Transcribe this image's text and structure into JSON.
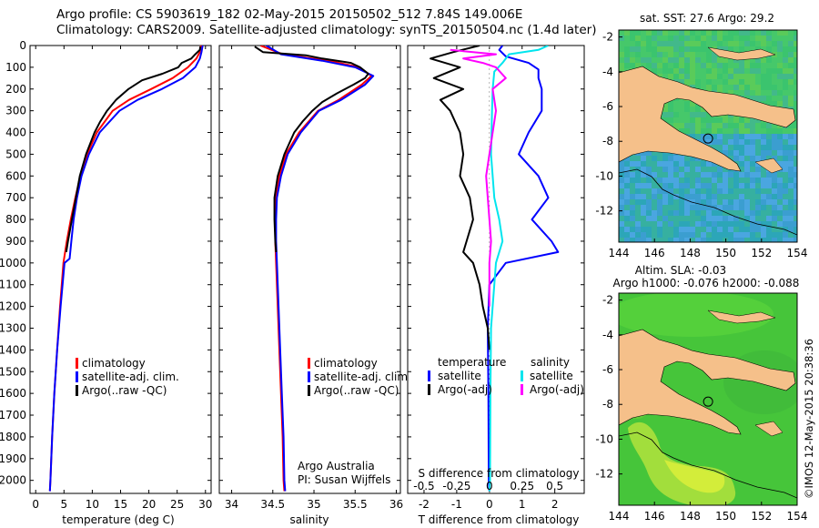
{
  "header": {
    "line1": "Argo profile: CS 5903619_182 02-May-2015 20150502_512 7.84S 149.006E",
    "line2": "Climatology: CARS2009. Satellite-adjusted climatology: synTS_20150504.nc (1.4d later)"
  },
  "depth_axis": {
    "ticks": [
      0,
      100,
      200,
      300,
      400,
      500,
      600,
      700,
      800,
      900,
      1000,
      1100,
      1200,
      1300,
      1400,
      1500,
      1600,
      1700,
      1800,
      1900,
      2000
    ],
    "range": [
      0,
      2060
    ]
  },
  "temp_panel": {
    "xlabel": "temperature (deg C)",
    "xticks": [
      0,
      5,
      10,
      15,
      20,
      25,
      30
    ],
    "xrange": [
      -1,
      31
    ],
    "legend": [
      "climatology",
      "satellite-adj. clim.",
      "Argo(..raw -QC)"
    ],
    "colors": {
      "clim": "#ff0000",
      "sat": "#0000ff",
      "argo": "#000000"
    }
  },
  "sal_panel": {
    "xlabel": "salinity",
    "xticks": [
      "34",
      "34.5",
      "35",
      "35.5",
      "36"
    ],
    "xrange": [
      33.85,
      36.05
    ],
    "legend": [
      "climatology",
      "satellite-adj. clim.",
      "Argo(..raw -QC)"
    ],
    "credit1": "Argo Australia",
    "credit2": "PI: Susan Wijffels"
  },
  "diff_panel": {
    "xlabel": "T difference from climatology",
    "xticks": [
      "-2",
      "-1",
      "0",
      "1",
      "2"
    ],
    "top_label": "S difference from climatology",
    "top_ticks": [
      "-0.5",
      "-0.25",
      "0",
      "0.25",
      "0.5"
    ],
    "xrange": [
      -2.5,
      2.9
    ],
    "legend_temp_title": "temperature",
    "legend_sal_title": "salinity",
    "legend_items": [
      "satellite",
      "Argo(-adj)",
      "satellite",
      "Argo(-adj)"
    ],
    "colors": {
      "t_sat": "#0000ff",
      "t_argo": "#000000",
      "s_sat": "#00e5ee",
      "s_argo": "#ff00ff"
    }
  },
  "map_sst": {
    "title": "sat. SST: 27.6  Argo: 29.2",
    "xticks": [
      "144",
      "146",
      "148",
      "150",
      "152",
      "154"
    ],
    "yticks": [
      "-2",
      "-4",
      "-6",
      "-8",
      "-10",
      "-12"
    ]
  },
  "map_sla": {
    "title1": "Altim. SLA: -0.03",
    "title2": "Argo h1000: -0.076  h2000: -0.088",
    "xticks": [
      "144",
      "146",
      "148",
      "150",
      "152",
      "154"
    ],
    "yticks": [
      "-2",
      "-4",
      "-6",
      "-8",
      "-10",
      "-12"
    ]
  },
  "float_position": {
    "lon": 149.006,
    "lat": -7.84
  },
  "stamp": "©IMOS 12-May-2015 20:38:36",
  "chart_data": [
    {
      "type": "line",
      "title": "",
      "xlabel": "temperature (deg C)",
      "ylabel": "",
      "xlim": [
        -1,
        31
      ],
      "ylim": [
        2060,
        0
      ],
      "series": [
        {
          "name": "climatology",
          "depth": [
            0,
            30,
            60,
            100,
            150,
            200,
            250,
            300,
            400,
            500,
            600,
            700,
            800,
            900,
            1000,
            1200,
            1400,
            1600,
            1800,
            2000,
            2050
          ],
          "values": [
            29.2,
            29,
            28.4,
            26.9,
            24.2,
            20.4,
            16.5,
            13.6,
            10.8,
            9.1,
            7.9,
            7.0,
            6.2,
            5.5,
            4.9,
            4.3,
            3.8,
            3.3,
            2.9,
            2.6,
            2.5
          ]
        },
        {
          "name": "satellite-adj. clim.",
          "depth": [
            0,
            30,
            60,
            100,
            150,
            200,
            250,
            300,
            400,
            500,
            600,
            700,
            800,
            900,
            980,
            1000,
            1200,
            1400,
            1600,
            1800,
            2000,
            2050
          ],
          "values": [
            29.5,
            29.3,
            29,
            28.2,
            26,
            22.3,
            18,
            14.8,
            11.3,
            9.4,
            8.1,
            7.3,
            6.7,
            6.3,
            6.0,
            5.1,
            4.4,
            3.8,
            3.3,
            2.9,
            2.6,
            2.5
          ]
        },
        {
          "name": "Argo(..raw -QC)",
          "depth": [
            5,
            20,
            40,
            60,
            80,
            100,
            130,
            160,
            200,
            250,
            300,
            350,
            400,
            500,
            600,
            700,
            800,
            900,
            950
          ],
          "values": [
            29.1,
            29.0,
            28.2,
            27.5,
            25.8,
            25.2,
            22.4,
            18.8,
            16.4,
            14.2,
            12.6,
            11.4,
            10.4,
            8.9,
            7.8,
            7.1,
            6.4,
            5.7,
            5.4
          ]
        }
      ]
    },
    {
      "type": "line",
      "title": "",
      "xlabel": "salinity",
      "ylabel": "",
      "xlim": [
        33.85,
        36.05
      ],
      "ylim": [
        2060,
        0
      ],
      "series": [
        {
          "name": "climatology",
          "depth": [
            0,
            40,
            70,
            100,
            140,
            180,
            250,
            300,
            400,
            500,
            600,
            700,
            800,
            900,
            1000,
            1200,
            1400,
            1600,
            1800,
            2000,
            2050
          ],
          "values": [
            34.35,
            34.62,
            35.18,
            35.55,
            35.7,
            35.58,
            35.3,
            35.05,
            34.82,
            34.66,
            34.58,
            34.54,
            34.53,
            34.53,
            34.54,
            34.56,
            34.58,
            34.6,
            34.62,
            34.63,
            34.64
          ]
        },
        {
          "name": "satellite-adj. clim.",
          "depth": [
            0,
            40,
            70,
            100,
            140,
            180,
            250,
            300,
            400,
            500,
            600,
            700,
            800,
            900,
            1000,
            1200,
            1400,
            1600,
            1800,
            2000,
            2050
          ],
          "values": [
            34.42,
            34.6,
            35.1,
            35.5,
            35.72,
            35.62,
            35.33,
            35.06,
            34.84,
            34.68,
            34.6,
            34.55,
            34.54,
            34.54,
            34.55,
            34.57,
            34.59,
            34.61,
            34.63,
            34.64,
            34.65
          ]
        },
        {
          "name": "Argo(..raw -QC)",
          "depth": [
            5,
            15,
            30,
            45,
            60,
            80,
            100,
            130,
            150,
            180,
            220,
            260,
            300,
            350,
            400,
            500,
            600,
            700,
            800,
            900,
            950
          ],
          "values": [
            34.28,
            34.32,
            34.38,
            34.9,
            35.1,
            35.45,
            35.56,
            35.66,
            35.62,
            35.48,
            35.28,
            35.1,
            34.98,
            34.86,
            34.76,
            34.64,
            34.56,
            34.52,
            34.52,
            34.53,
            34.54
          ]
        }
      ]
    },
    {
      "type": "line",
      "title": "",
      "xlabel": "T difference from climatology",
      "ylabel": "",
      "xlim": [
        -2.5,
        2.9
      ],
      "ylim": [
        2060,
        0
      ],
      "series": [
        {
          "name": "temperature satellite",
          "depth": [
            0,
            20,
            50,
            80,
            110,
            150,
            200,
            300,
            400,
            500,
            600,
            700,
            800,
            900,
            950,
            1000,
            1100,
            1300,
            1600,
            2000,
            2050
          ],
          "values": [
            0.4,
            0.3,
            0.5,
            1.2,
            1.5,
            1.5,
            1.6,
            1.6,
            1.2,
            0.9,
            1.5,
            1.8,
            1.3,
            1.9,
            2.1,
            0.5,
            0.0,
            -0.05,
            -0.03,
            -0.02,
            0.0
          ]
        },
        {
          "name": "temperature Argo(-adj)",
          "depth": [
            0,
            30,
            60,
            100,
            150,
            200,
            250,
            300,
            400,
            500,
            600,
            700,
            800,
            900,
            950,
            1000,
            1100,
            1200,
            1300,
            1400
          ],
          "values": [
            -0.3,
            -1.1,
            -1.8,
            -0.9,
            -1.7,
            -0.8,
            -1.5,
            -1.2,
            -0.9,
            -0.8,
            -0.9,
            -0.6,
            -0.5,
            -0.7,
            -0.8,
            -0.5,
            -0.3,
            -0.2,
            -0.05,
            0.0
          ]
        },
        {
          "name": "salinity satellite",
          "depth": [
            0,
            20,
            40,
            80,
            120,
            200,
            300,
            500,
            700,
            800,
            900,
            1000,
            1300,
            1600,
            2000,
            2050
          ],
          "values": [
            1.8,
            1.5,
            0.6,
            0.4,
            0.15,
            0.1,
            0.08,
            0.05,
            0.15,
            0.3,
            0.4,
            0.2,
            0.05,
            0.03,
            0.02,
            0.0
          ]
        },
        {
          "name": "salinity Argo(-adj)",
          "depth": [
            20,
            40,
            60,
            80,
            100,
            150,
            200,
            300,
            400,
            500,
            600,
            700,
            800,
            900,
            1000,
            1100,
            1200
          ],
          "values": [
            -1.2,
            0.2,
            -0.8,
            -0.2,
            0.2,
            0.5,
            0.1,
            0.2,
            0.1,
            0.0,
            -0.1,
            -0.05,
            0.0,
            0.05,
            0.0,
            0.0,
            0.0
          ]
        }
      ]
    }
  ]
}
